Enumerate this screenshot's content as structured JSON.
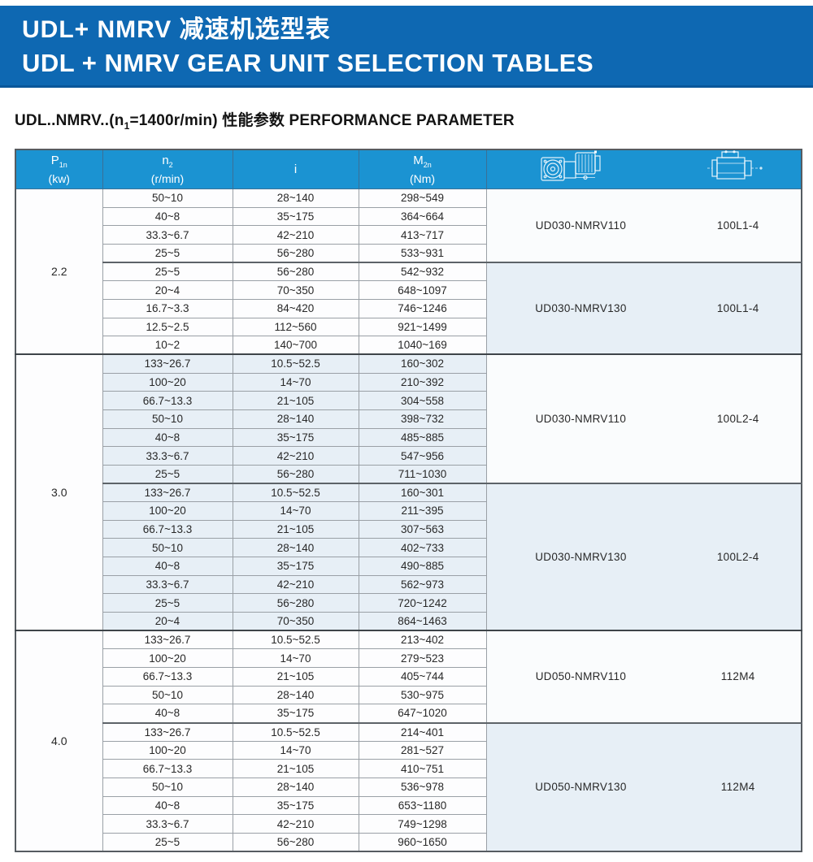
{
  "banner": {
    "title_zh": "UDL+ NMRV 减速机选型表",
    "title_en": "UDL + NMRV GEAR UNIT SELECTION TABLES"
  },
  "subtitle": {
    "part1": "UDL..NMRV..(n",
    "sub": "1",
    "part2": "=1400r/min) 性能参数 PERFORMANCE PARAMETER"
  },
  "table": {
    "columns": [
      {
        "main": "P",
        "sub": "1n",
        "unit": "(kw)"
      },
      {
        "main": "n",
        "sub": "2",
        "unit": "(r/min)"
      },
      {
        "main": "i",
        "sub": "",
        "unit": ""
      },
      {
        "main": "M",
        "sub": "2n",
        "unit": "(Nm)"
      }
    ],
    "header_icons": [
      {
        "name": "gearbox-drawing-icon"
      },
      {
        "name": "motor-drawing-icon"
      }
    ],
    "blocks": [
      {
        "power": "2.2",
        "row_tint": false,
        "groups": [
          {
            "model": "UD030-NMRV110",
            "motor": "100L1-4",
            "panel_tint": false,
            "rows": [
              [
                "50~10",
                "28~140",
                "298~549"
              ],
              [
                "40~8",
                "35~175",
                "364~664"
              ],
              [
                "33.3~6.7",
                "42~210",
                "413~717"
              ],
              [
                "25~5",
                "56~280",
                "533~931"
              ]
            ]
          },
          {
            "model": "UD030-NMRV130",
            "motor": "100L1-4",
            "panel_tint": true,
            "rows": [
              [
                "25~5",
                "56~280",
                "542~932"
              ],
              [
                "20~4",
                "70~350",
                "648~1097"
              ],
              [
                "16.7~3.3",
                "84~420",
                "746~1246"
              ],
              [
                "12.5~2.5",
                "112~560",
                "921~1499"
              ],
              [
                "10~2",
                "140~700",
                "1040~169"
              ]
            ]
          }
        ]
      },
      {
        "power": "3.0",
        "row_tint": true,
        "groups": [
          {
            "model": "UD030-NMRV110",
            "motor": "100L2-4",
            "panel_tint": false,
            "rows": [
              [
                "133~26.7",
                "10.5~52.5",
                "160~302"
              ],
              [
                "100~20",
                "14~70",
                "210~392"
              ],
              [
                "66.7~13.3",
                "21~105",
                "304~558"
              ],
              [
                "50~10",
                "28~140",
                "398~732"
              ],
              [
                "40~8",
                "35~175",
                "485~885"
              ],
              [
                "33.3~6.7",
                "42~210",
                "547~956"
              ],
              [
                "25~5",
                "56~280",
                "711~1030"
              ]
            ]
          },
          {
            "model": "UD030-NMRV130",
            "motor": "100L2-4",
            "panel_tint": true,
            "rows": [
              [
                "133~26.7",
                "10.5~52.5",
                "160~301"
              ],
              [
                "100~20",
                "14~70",
                "211~395"
              ],
              [
                "66.7~13.3",
                "21~105",
                "307~563"
              ],
              [
                "50~10",
                "28~140",
                "402~733"
              ],
              [
                "40~8",
                "35~175",
                "490~885"
              ],
              [
                "33.3~6.7",
                "42~210",
                "562~973"
              ],
              [
                "25~5",
                "56~280",
                "720~1242"
              ],
              [
                "20~4",
                "70~350",
                "864~1463"
              ]
            ]
          }
        ]
      },
      {
        "power": "4.0",
        "row_tint": false,
        "groups": [
          {
            "model": "UD050-NMRV110",
            "motor": "112M4",
            "panel_tint": false,
            "rows": [
              [
                "133~26.7",
                "10.5~52.5",
                "213~402"
              ],
              [
                "100~20",
                "14~70",
                "279~523"
              ],
              [
                "66.7~13.3",
                "21~105",
                "405~744"
              ],
              [
                "50~10",
                "28~140",
                "530~975"
              ],
              [
                "40~8",
                "35~175",
                "647~1020"
              ]
            ]
          },
          {
            "model": "UD050-NMRV130",
            "motor": "112M4",
            "panel_tint": true,
            "rows": [
              [
                "133~26.7",
                "10.5~52.5",
                "214~401"
              ],
              [
                "100~20",
                "14~70",
                "281~527"
              ],
              [
                "66.7~13.3",
                "21~105",
                "410~751"
              ],
              [
                "50~10",
                "28~140",
                "536~978"
              ],
              [
                "40~8",
                "35~175",
                "653~1180"
              ],
              [
                "33.3~6.7",
                "42~210",
                "749~1298"
              ],
              [
                "25~5",
                "56~280",
                "960~1650"
              ]
            ]
          }
        ]
      }
    ]
  },
  "colors": {
    "banner_blue": "#0e68b2",
    "table_header_blue": "#1b93d2",
    "row_tint_blue": "#e7eff6",
    "border_gray": "#9aa0a6",
    "border_dark": "#3e4449",
    "text_dark": "#282828",
    "header_text": "#ffffff"
  }
}
